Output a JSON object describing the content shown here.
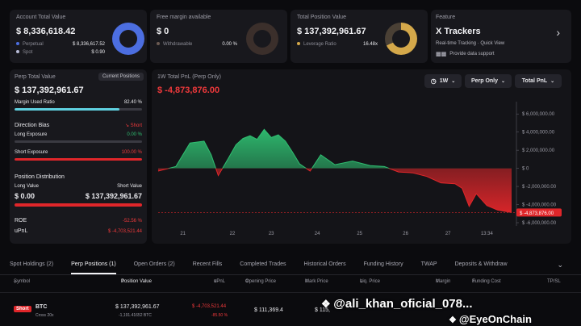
{
  "account_total": {
    "title": "Account Total Value",
    "value": "$ 8,336,618.42",
    "rows": [
      {
        "label": "Perpetual",
        "value": "$ 8,336,617.52",
        "color": "#4c6ee0"
      },
      {
        "label": "Spot",
        "value": "$ 0.90",
        "color": "#b8bcd8"
      }
    ],
    "donut_color": "#4c6ee0"
  },
  "free_margin": {
    "title": "Free margin available",
    "value": "$ 0",
    "row_label": "Withdrawable",
    "row_value": "0.00 %",
    "donut_color": "#3b2f2b"
  },
  "total_position": {
    "title": "Total Position Value",
    "value": "$ 137,392,961.67",
    "row_label": "Leverage Ratio",
    "row_value": "16.48x",
    "donut_color": "#d4a84a"
  },
  "feature": {
    "title": "Feature",
    "name": "X Trackers",
    "desc": "Real-time Tracking · Quick View",
    "sub": "Provide data support"
  },
  "perp_panel": {
    "title": "Perp Total Value",
    "button": "Current Positions",
    "value": "$ 137,392,961.67",
    "margin_label": "Margin Used Ratio",
    "margin_value": "82.40 %",
    "margin_fill": 0.824,
    "bias_label": "Direction Bias",
    "bias_value": "Short",
    "long_label": "Long Exposure",
    "long_value": "0.00 %",
    "long_fill": 0.0,
    "short_label": "Short Exposure",
    "short_value": "100.00 %",
    "short_fill": 1.0,
    "dist_label": "Position Distribution",
    "long_value_label": "Long Value",
    "short_value_label": "Short Value",
    "long_amount": "$ 0.00",
    "short_amount": "$ 137,392,961.67",
    "roe_label": "ROE",
    "roe_value": "-52.56 %",
    "upnl_label": "uPnL",
    "upnl_value": "$ -4,703,521.44"
  },
  "chart_panel": {
    "title": "1W Total PnL (Perp Only)",
    "value": "$ -4,873,876.00",
    "dropdowns": [
      "1W",
      "Perp Only",
      "Total PnL"
    ],
    "current_tag": "$ -4,873,876.00"
  },
  "chart_data": {
    "type": "area",
    "title": "1W Total PnL (Perp Only)",
    "x_labels": [
      "21",
      "22",
      "23",
      "24",
      "25",
      "26",
      "27",
      "13:34"
    ],
    "y_ticks": [
      "$ 6,000,000.00",
      "$ 4,000,000.00",
      "$ 2,000,000.00",
      "$ 0",
      "$ -2,000,000.00",
      "$ -4,000,000.00",
      "$ -6,000,000.00"
    ],
    "y_tick_values": [
      6000000,
      4000000,
      2000000,
      0,
      -2000000,
      -4000000,
      -6000000
    ],
    "ylim": [
      -6000000,
      7000000
    ],
    "x": [
      0,
      0.05,
      0.09,
      0.13,
      0.15,
      0.17,
      0.2,
      0.22,
      0.24,
      0.26,
      0.28,
      0.3,
      0.32,
      0.34,
      0.36,
      0.38,
      0.4,
      0.43,
      0.46,
      0.5,
      0.55,
      0.6,
      0.64,
      0.68,
      0.72,
      0.76,
      0.8,
      0.84,
      0.86,
      0.88,
      0.9,
      0.93,
      0.96,
      1.0
    ],
    "values": [
      -300000,
      200000,
      2800000,
      3000000,
      1500000,
      -800000,
      1200000,
      2600000,
      3300000,
      3600000,
      3200000,
      4300000,
      3400000,
      3700000,
      3000000,
      1800000,
      500000,
      -300000,
      1500000,
      400000,
      800000,
      300000,
      200000,
      -400000,
      -500000,
      -900000,
      -1600000,
      -1700000,
      -2200000,
      -4200000,
      -2800000,
      -4100000,
      -4600000,
      -4873876
    ],
    "series": [
      {
        "name": "Total PnL",
        "positive_color": "#2fbf71",
        "negative_color": "#e0262a"
      }
    ]
  },
  "tabs": [
    "Spot Holdings (2)",
    "Perp Positions (1)",
    "Open Orders (2)",
    "Recent Fills",
    "Completed Trades",
    "Historical Orders",
    "Funding History",
    "TWAP",
    "Deposits & Withdraw"
  ],
  "active_tab": "Perp Positions (1)",
  "table": {
    "headers": [
      "Symbol",
      "Position Value",
      "uPnL",
      "Opening Price",
      "Mark Price",
      "Liq. Price",
      "Margin",
      "Funding Cost",
      "TP/SL"
    ],
    "row": {
      "side": "Short",
      "symbol": "BTC",
      "leverage": "Cross 20x",
      "position_value": "$ 137,392,961.67",
      "position_size": "-1,191.41652 BTC",
      "upnl": "$ -4,703,521.44",
      "upnl_pct": "-85.50 %",
      "opening_price": "$ 111,369.4",
      "mark_price": "$ 115,"
    }
  },
  "watermarks": [
    "@ali_khan_oficial_078...",
    "@EyeOnChain"
  ]
}
